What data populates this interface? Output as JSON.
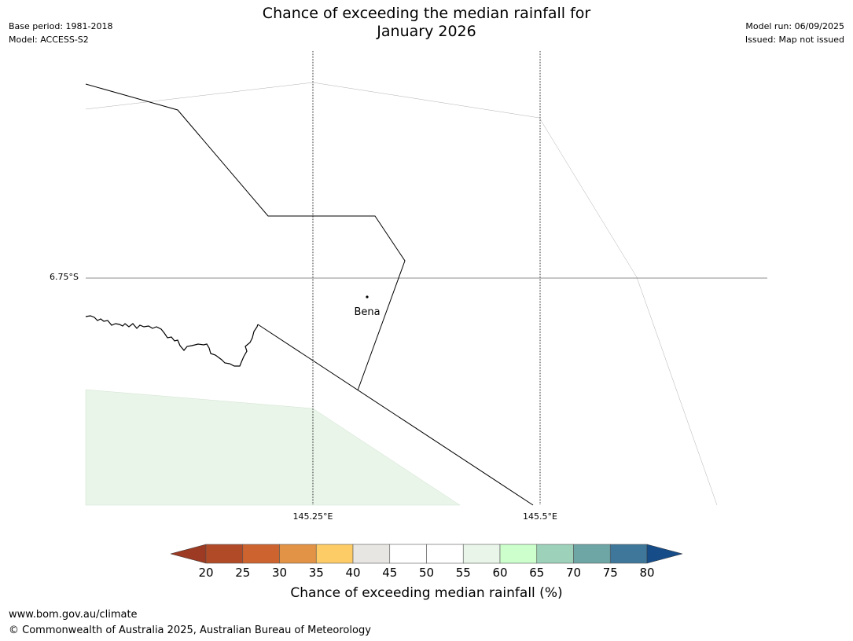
{
  "header": {
    "title_line1": "Chance of exceeding the median rainfall for",
    "title_line2": "January 2026",
    "base_period": "Base period: 1981-2018",
    "model": "Model: ACCESS-S2",
    "model_run": "Model run: 06/09/2025",
    "issued": "Issued: Map not issued"
  },
  "map": {
    "latitude_label": "6.75°S",
    "longitude_labels": [
      "145.25°E",
      "145.5°E"
    ],
    "place": {
      "name": "Bena"
    },
    "shaded_category": "55-60",
    "shaded_color": "#e8f5e8"
  },
  "colorbar": {
    "label": "Chance of exceeding median rainfall (%)",
    "ticks": [
      "20",
      "25",
      "30",
      "35",
      "40",
      "45",
      "50",
      "55",
      "60",
      "65",
      "70",
      "75",
      "80"
    ],
    "colors": [
      "#b04a27",
      "#cd632f",
      "#e29345",
      "#fdcc66",
      "#e8e6e3",
      "#ffffff",
      "#ffffff",
      "#e8f5e8",
      "#ccffcc",
      "#9dd1ba",
      "#6ea6a5",
      "#3e7799"
    ],
    "under_color": "#9c3a23",
    "over_color": "#164d89"
  },
  "footer": {
    "website": "www.bom.gov.au/climate",
    "copyright": "© Commonwealth of Australia 2025, Australian Bureau of Meteorology"
  }
}
